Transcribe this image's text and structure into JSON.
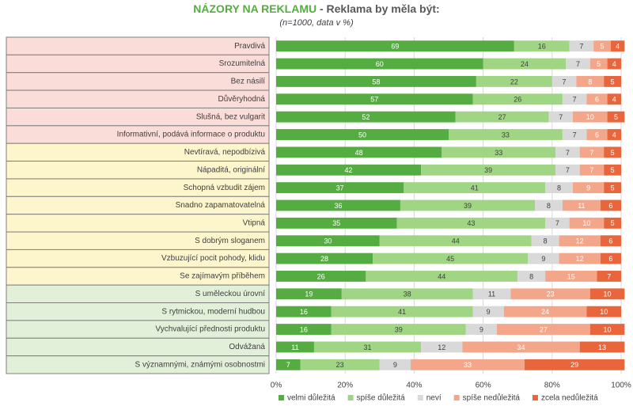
{
  "chart_data": {
    "type": "stacked-bar-horizontal",
    "title": "NÁZORY NA REKLAMU",
    "title_rest": "- Reklama by měla být:",
    "subtitle": "(n=1000, data v %)",
    "categories": [
      "Pravdivá",
      "Srozumitelná",
      "Bez násilí",
      "Důvěryhodná",
      "Slušná, bez vulgarit",
      "Informativní, podává informace o produktu",
      "Nevtíravá, nepodbízivá",
      "Nápaditá, originální",
      "Schopná vzbudit zájem",
      "Snadno zapamatovatelná",
      "Vtipná",
      "S dobrým sloganem",
      "Vzbuzující pocit pohody, klidu",
      "Se zajímavým příběhem",
      "S uměleckou úrovní",
      "S rytmickou, moderní hudbou",
      "Vychvalující přednosti  produktu",
      "Odvážaná",
      "S významnými, známými osobnostmi"
    ],
    "category_colors": [
      "#fadcd8",
      "#fadcd8",
      "#fadcd8",
      "#fadcd8",
      "#fadcd8",
      "#fadcd8",
      "#fdf6cc",
      "#fdf6cc",
      "#fdf6cc",
      "#fdf6cc",
      "#fdf6cc",
      "#fdf6cc",
      "#fdf6cc",
      "#fdf6cc",
      "#e2f0da",
      "#e2f0da",
      "#e2f0da",
      "#e2f0da",
      "#e2f0da"
    ],
    "series": [
      {
        "name": "velmi důležitá",
        "color": "#55ad42",
        "label_color": "#ffffff",
        "values": [
          69,
          60,
          58,
          57,
          52,
          50,
          48,
          42,
          37,
          36,
          35,
          30,
          28,
          26,
          19,
          16,
          16,
          11,
          7
        ]
      },
      {
        "name": "spíše důležitá",
        "color": "#a0d683",
        "label_color": "#404040",
        "values": [
          16,
          24,
          22,
          26,
          27,
          33,
          33,
          39,
          41,
          39,
          43,
          44,
          45,
          44,
          38,
          41,
          39,
          31,
          23
        ]
      },
      {
        "name": "neví",
        "color": "#d9d9d9",
        "label_color": "#404040",
        "values": [
          7,
          7,
          7,
          7,
          7,
          7,
          7,
          7,
          8,
          8,
          7,
          8,
          9,
          8,
          11,
          9,
          9,
          12,
          9
        ]
      },
      {
        "name": "spíše nedůležitá",
        "color": "#f4a68b",
        "label_color": "#ffffff",
        "values": [
          5,
          5,
          8,
          6,
          10,
          6,
          7,
          7,
          9,
          11,
          10,
          12,
          12,
          15,
          23,
          24,
          27,
          34,
          33
        ]
      },
      {
        "name": "zcela nedůležitá",
        "color": "#e9663d",
        "label_color": "#ffffff",
        "values": [
          4,
          4,
          5,
          4,
          5,
          4,
          5,
          5,
          5,
          6,
          5,
          6,
          6,
          7,
          10,
          10,
          10,
          13,
          29
        ]
      }
    ],
    "xlim": [
      0,
      100
    ],
    "xticks": [
      {
        "value": 0,
        "label": "0%"
      },
      {
        "value": 20,
        "label": "20%"
      },
      {
        "value": 40,
        "label": "40%"
      },
      {
        "value": 60,
        "label": "60%"
      },
      {
        "value": 80,
        "label": "80%"
      },
      {
        "value": 100,
        "label": "100%"
      }
    ],
    "grid": true
  }
}
